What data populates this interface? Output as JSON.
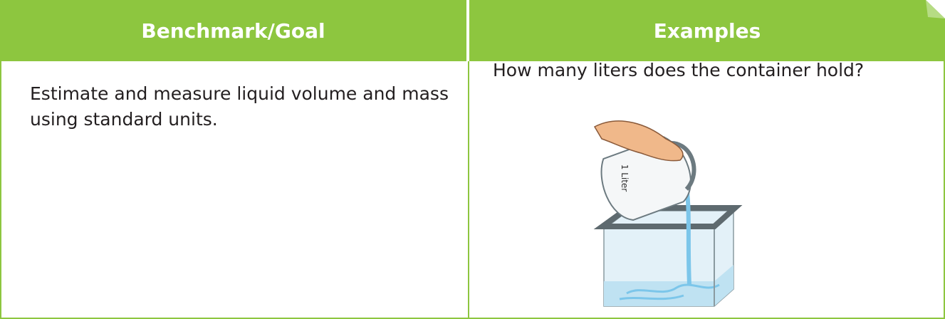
{
  "table": {
    "headers": [
      "Benchmark/Goal",
      "Examples"
    ],
    "rows": [
      [
        "Estimate and measure liquid volume and mass using standard units.",
        "How many liters does the container hold?"
      ]
    ]
  },
  "image": {
    "label": "1 Liter"
  }
}
